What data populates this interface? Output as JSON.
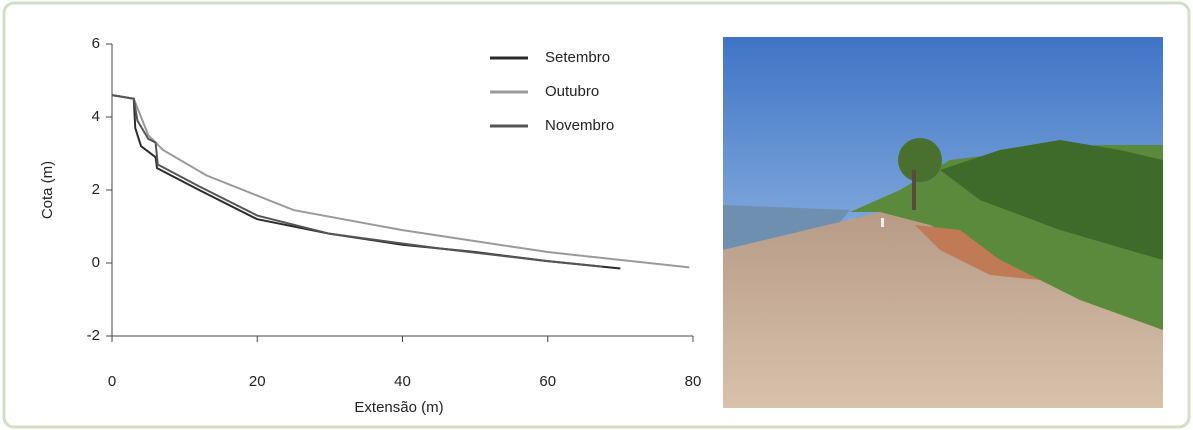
{
  "chart_data": {
    "type": "line",
    "xlabel": "Extensão (m)",
    "ylabel": "Cota (m)",
    "xlim": [
      0,
      80
    ],
    "xticks": [
      0,
      20,
      40,
      60,
      80
    ],
    "ylim": [
      -2,
      6
    ],
    "yticks": [
      -2,
      0,
      2,
      4,
      6
    ],
    "legend": "upper right",
    "series": [
      {
        "name": "Setembro",
        "color": "#2b2b2b",
        "x": [
          0,
          3,
          3.2,
          4,
          6,
          6.2,
          12,
          20,
          30,
          40,
          50,
          60,
          70
        ],
        "values": [
          4.6,
          4.5,
          3.7,
          3.2,
          2.9,
          2.6,
          2.0,
          1.2,
          0.8,
          0.5,
          0.3,
          0.05,
          -0.15
        ]
      },
      {
        "name": "Outubro",
        "color": "#9a9a9a",
        "x": [
          0,
          3,
          5,
          7,
          13,
          25,
          40,
          60,
          79.5
        ],
        "values": [
          4.6,
          4.5,
          3.5,
          3.1,
          2.4,
          1.45,
          0.9,
          0.3,
          -0.12
        ]
      },
      {
        "name": "Novembro",
        "color": "#555555",
        "x": [
          0,
          3,
          3.5,
          5,
          6,
          6.3,
          12,
          20,
          30,
          45,
          60,
          67.5
        ],
        "values": [
          4.6,
          4.5,
          3.9,
          3.4,
          3.3,
          2.7,
          2.1,
          1.3,
          0.8,
          0.4,
          0.05,
          -0.1
        ]
      }
    ]
  }
}
